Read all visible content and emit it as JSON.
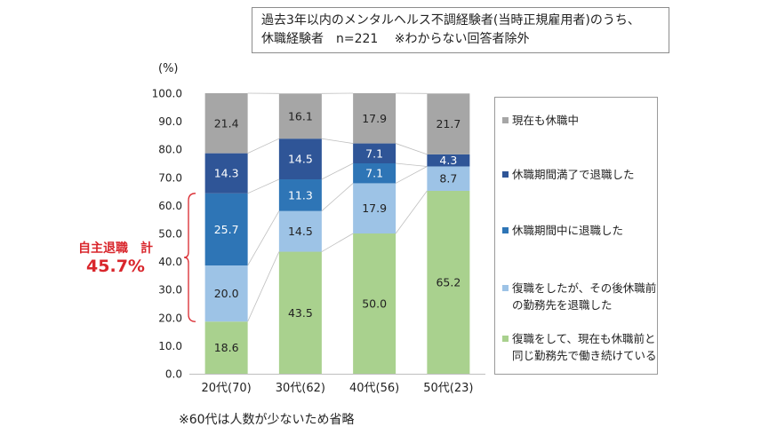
{
  "header": {
    "line1": "過去3年以内のメンタルヘルス不調経験者(当時正規雇用者)のうち、",
    "line2": "休職経験者　n=221　 ※わからない回答者除外"
  },
  "unit_label": "(%)",
  "annotation": {
    "label": "自主退職　計",
    "value": "45.7%",
    "color": "#d9262c",
    "range": [
      18.6,
      64.3
    ]
  },
  "footnote": "※60代は人数が少ないため省略",
  "chart_data": {
    "type": "bar",
    "stacked": true,
    "categories": [
      "20代(70)",
      "30代(62)",
      "40代(56)",
      "50代(23)"
    ],
    "ylim": [
      0,
      100
    ],
    "yticks": [
      "0.0",
      "10.0",
      "20.0",
      "30.0",
      "40.0",
      "50.0",
      "60.0",
      "70.0",
      "80.0",
      "90.0",
      "100.0"
    ],
    "series": [
      {
        "name": "復職をして、現在も休職前と同じ勤務先で働き続けている",
        "color": "#a9d18e",
        "label_color": "#222222",
        "values": [
          18.6,
          43.5,
          50.0,
          65.2
        ],
        "labels": [
          "18.6",
          "43.5",
          "50.0",
          "65.2"
        ]
      },
      {
        "name": "復職をしたが、その後休職前の勤務先を退職した",
        "color": "#9dc3e6",
        "label_color": "#222222",
        "values": [
          20.0,
          14.5,
          17.9,
          8.7
        ],
        "labels": [
          "20.0",
          "14.5",
          "17.9",
          "8.7"
        ]
      },
      {
        "name": "休職期間中に退職した",
        "color": "#2e75b6",
        "label_color": "#ffffff",
        "values": [
          25.7,
          11.3,
          7.1,
          0
        ],
        "labels": [
          "25.7",
          "11.3",
          "7.1",
          ""
        ]
      },
      {
        "name": "休職期間満了で退職した",
        "color": "#2f5597",
        "label_color": "#ffffff",
        "values": [
          14.3,
          14.5,
          7.1,
          4.3
        ],
        "labels": [
          "14.3",
          "14.5",
          "7.1",
          "4.3"
        ]
      },
      {
        "name": "現在も休職中",
        "color": "#a6a6a6",
        "label_color": "#222222",
        "values": [
          21.4,
          16.1,
          17.9,
          21.7
        ],
        "labels": [
          "21.4",
          "16.1",
          "17.9",
          "21.7"
        ]
      }
    ]
  }
}
